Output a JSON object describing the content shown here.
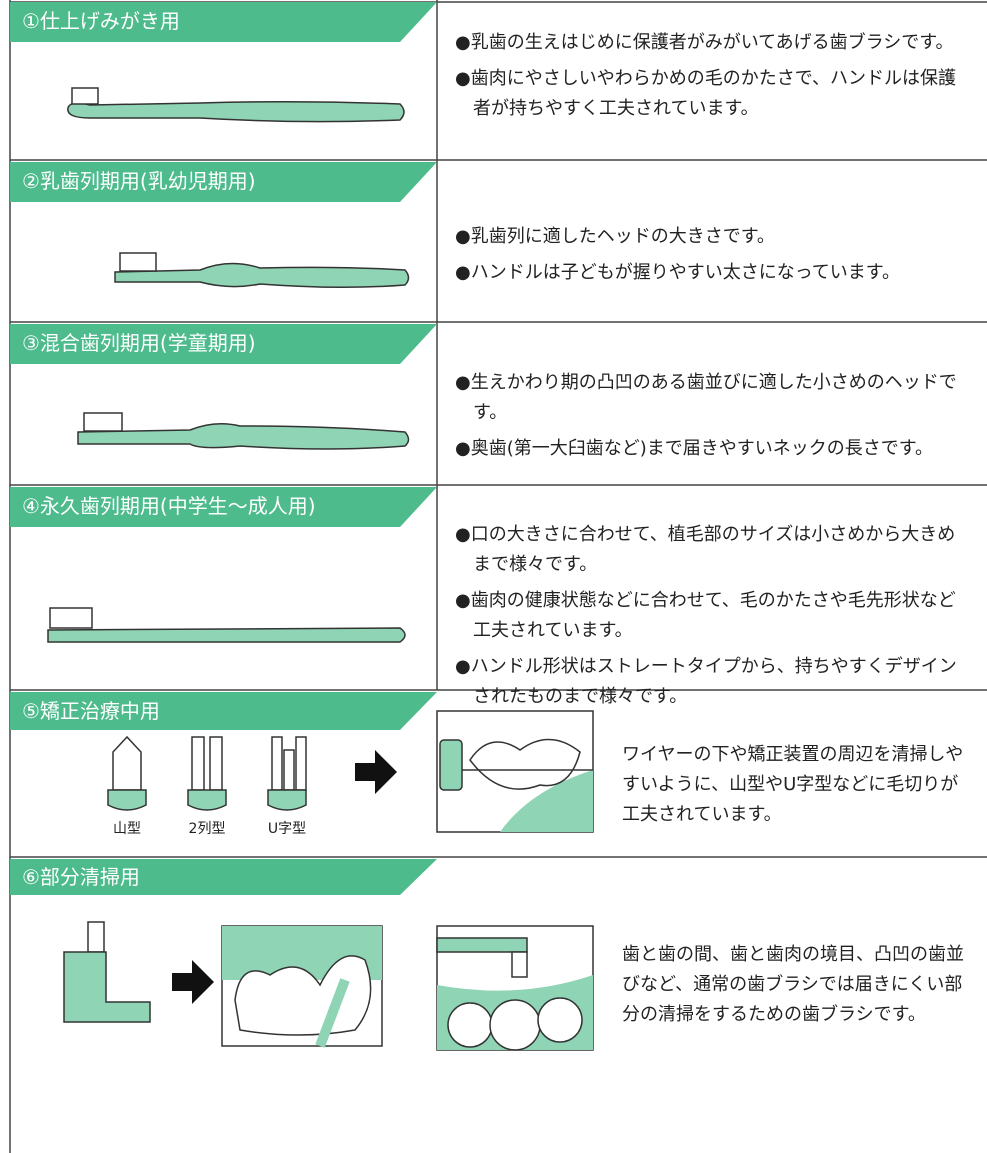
{
  "sections": [
    {
      "title": "①仕上げみがき用",
      "items": [
        "●乳歯の生えはじめに保護者がみがいてあげる歯ブラシです。",
        "●歯肉にやさしいやわらかめの毛のかたさで、ハンドルは保護者が持ちやすく工夫されています。"
      ]
    },
    {
      "title": "②乳歯列期用(乳幼児期用)",
      "items": [
        "●乳歯列に適したヘッドの大きさです。",
        "●ハンドルは子どもが握りやすい太さになっています。"
      ]
    },
    {
      "title": "③混合歯列期用(学童期用)",
      "items": [
        "●生えかわり期の凸凹のある歯並びに適した小さめのヘッドです。",
        "●奥歯(第一大臼歯など)まで届きやすいネックの長さです。"
      ]
    },
    {
      "title": "④永久歯列期用(中学生～成人用)",
      "items": [
        "●口の大きさに合わせて、植毛部のサイズは小さめから大きめまで様々です。",
        "●歯肉の健康状態などに合わせて、毛のかたさや毛先形状など工夫されています。",
        "●ハンドル形状はストレートタイプから、持ちやすくデザインされたものまで様々です。"
      ]
    },
    {
      "title": "⑤矯正治療中用",
      "labels": [
        "山型",
        "2列型",
        "U字型"
      ],
      "text": "ワイヤーの下や矯正装置の周辺を清掃しやすいように、山型やU字型などに毛切りが工夫されています。"
    },
    {
      "title": "⑥部分清掃用",
      "text": "歯と歯の間、歯と歯肉の境目、凸凹の歯並びなど、通常の歯ブラシでは届きにくい部分の清掃をするための歯ブラシです。"
    }
  ]
}
